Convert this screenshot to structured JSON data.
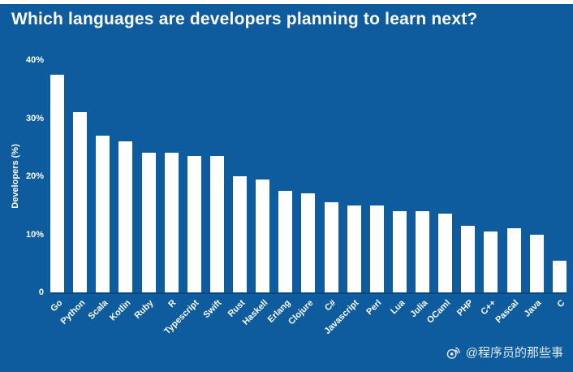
{
  "page": {
    "watermark": "@程序员的那些事",
    "colors": {
      "background": "#0e5c9e",
      "bar": "#ffffff",
      "text": "#ffffff"
    }
  },
  "chart_data": {
    "type": "bar",
    "title": "Which languages are developers planning to learn next?",
    "xlabel": "",
    "ylabel": "Developers (%)",
    "ylim": [
      0,
      40
    ],
    "ytick_values": [
      0,
      10,
      20,
      30,
      40
    ],
    "ytick_labels": [
      "0",
      "10%",
      "20%",
      "30%",
      "40%"
    ],
    "grid": false,
    "legend": "none",
    "bar_color": "#ffffff",
    "categories": [
      "Go",
      "Python",
      "Scala",
      "Kotlin",
      "Ruby",
      "R",
      "Typescript",
      "Swift",
      "Rust",
      "Haskell",
      "Erlang",
      "Clojure",
      "C#",
      "Javascript",
      "Perl",
      "Lua",
      "Julia",
      "OCaml",
      "PHP",
      "C++",
      "Pascal",
      "Java",
      "C"
    ],
    "values": [
      37.5,
      31,
      27,
      26,
      24,
      24,
      23.5,
      23.5,
      20,
      19.5,
      17.5,
      17,
      15.5,
      15,
      15,
      14,
      14,
      13.5,
      11.5,
      10.5,
      11,
      10,
      5.5
    ]
  }
}
